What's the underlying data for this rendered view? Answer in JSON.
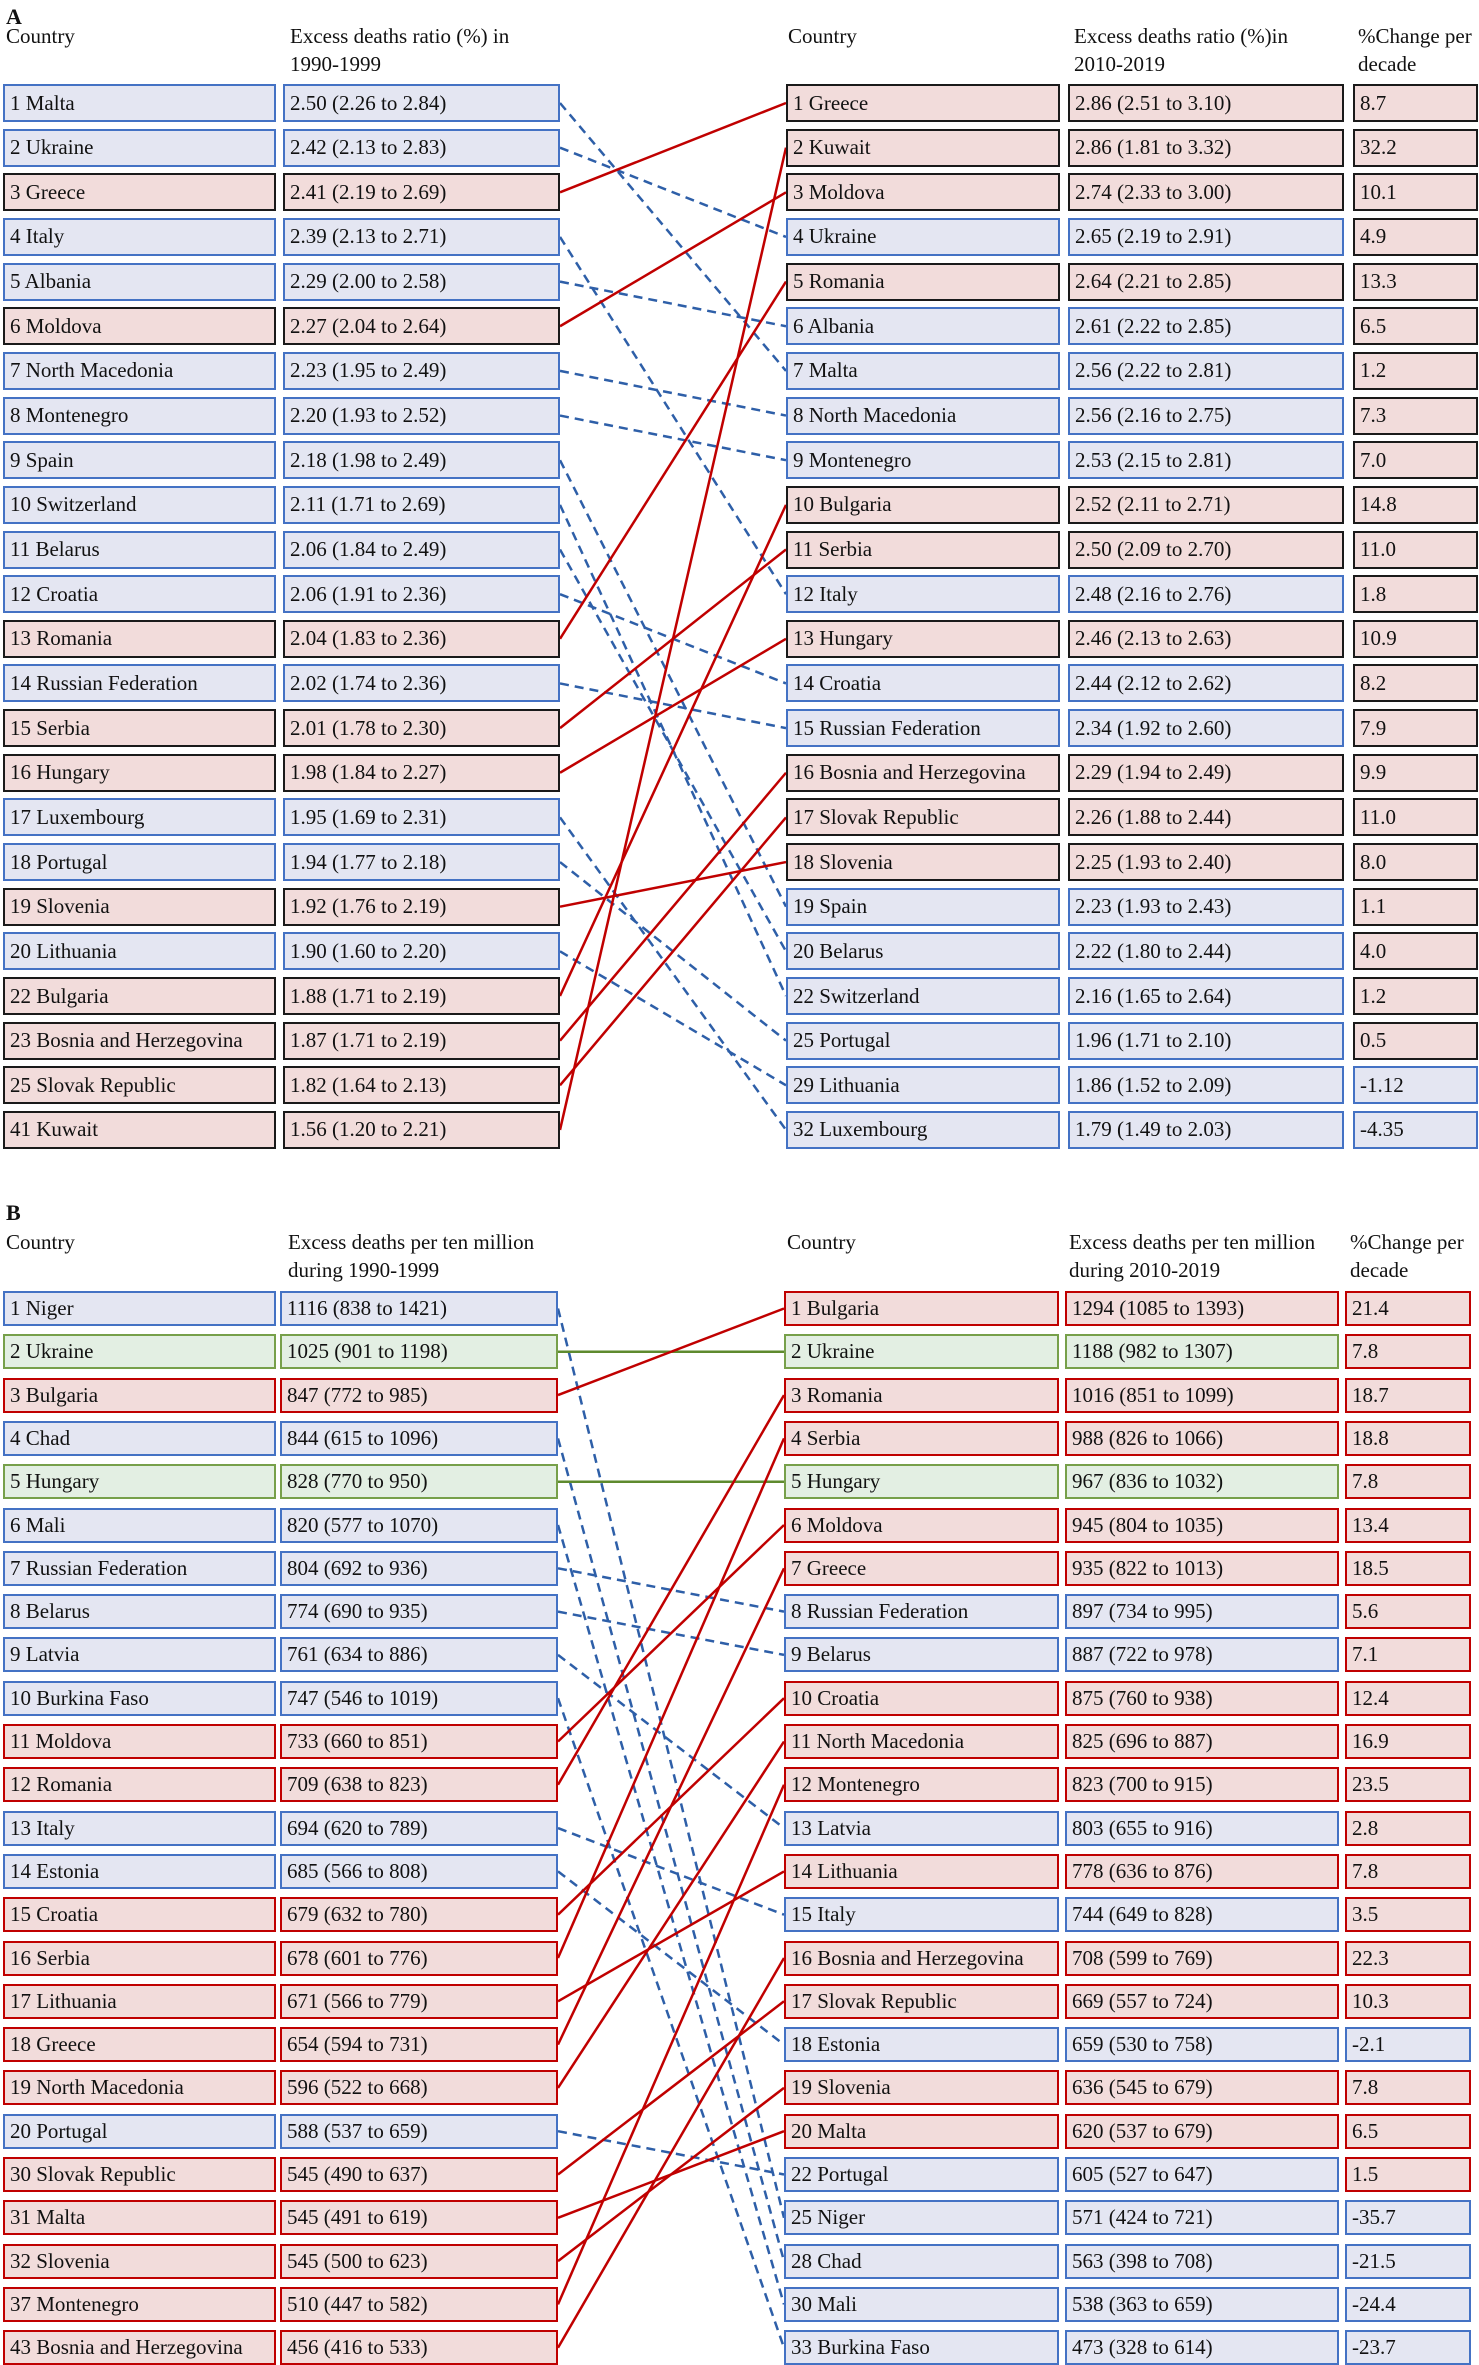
{
  "colors": {
    "increase": "#c00000",
    "decrease": "#2e5fa8",
    "stable": "#5e8a2e",
    "pink_fill": "#f2dcdb",
    "blue_fill": "#e4e6f2",
    "green_fill": "#e3efe3"
  },
  "panelA": {
    "label": "A",
    "headers": {
      "left_country": "Country",
      "left_value": "Excess deaths ratio (%) in 1990-1999",
      "right_country": "Country",
      "right_value": "Excess deaths ratio (%)in 2010-2019",
      "change": "%Change per decade"
    },
    "left": [
      {
        "rank": "1",
        "country": "Malta",
        "value": "2.50 (2.26 to 2.84)"
      },
      {
        "rank": "2",
        "country": "Ukraine",
        "value": "2.42 (2.13 to 2.83)"
      },
      {
        "rank": "3",
        "country": "Greece",
        "value": "2.41 (2.19 to 2.69)"
      },
      {
        "rank": "4",
        "country": "Italy",
        "value": "2.39 (2.13 to 2.71)"
      },
      {
        "rank": "5",
        "country": "Albania",
        "value": "2.29 (2.00 to 2.58)"
      },
      {
        "rank": "6",
        "country": "Moldova",
        "value": "2.27 (2.04 to 2.64)"
      },
      {
        "rank": "7",
        "country": "North Macedonia",
        "value": "2.23 (1.95 to 2.49)"
      },
      {
        "rank": "8",
        "country": "Montenegro",
        "value": "2.20 (1.93 to 2.52)"
      },
      {
        "rank": "9",
        "country": "Spain",
        "value": "2.18 (1.98 to 2.49)"
      },
      {
        "rank": "10",
        "country": "Switzerland",
        "value": "2.11 (1.71 to 2.69)"
      },
      {
        "rank": "11",
        "country": "Belarus",
        "value": "2.06 (1.84 to 2.49)"
      },
      {
        "rank": "12",
        "country": "Croatia",
        "value": "2.06 (1.91 to 2.36)"
      },
      {
        "rank": "13",
        "country": "Romania",
        "value": "2.04 (1.83 to 2.36)"
      },
      {
        "rank": "14",
        "country": "Russian Federation",
        "value": "2.02 (1.74 to 2.36)"
      },
      {
        "rank": "15",
        "country": "Serbia",
        "value": "2.01 (1.78 to 2.30)"
      },
      {
        "rank": "16",
        "country": "Hungary",
        "value": "1.98 (1.84 to 2.27)"
      },
      {
        "rank": "17",
        "country": "Luxembourg",
        "value": "1.95 (1.69 to 2.31)"
      },
      {
        "rank": "18",
        "country": "Portugal",
        "value": "1.94 (1.77 to 2.18)"
      },
      {
        "rank": "19",
        "country": "Slovenia",
        "value": "1.92 (1.76 to 2.19)"
      },
      {
        "rank": "20",
        "country": "Lithuania",
        "value": "1.90 (1.60 to 2.20)"
      },
      {
        "rank": "22",
        "country": "Bulgaria",
        "value": "1.88 (1.71 to 2.19)"
      },
      {
        "rank": "23",
        "country": "Bosnia and Herzegovina",
        "value": "1.87 (1.71 to 2.19)"
      },
      {
        "rank": "25",
        "country": "Slovak Republic",
        "value": "1.82 (1.64 to 2.13)"
      },
      {
        "rank": "41",
        "country": "Kuwait",
        "value": "1.56 (1.20 to 2.21)"
      }
    ],
    "right": [
      {
        "rank": "1",
        "country": "Greece",
        "value": "2.86 (2.51 to 3.10)",
        "change": "8.7",
        "trend": "increase"
      },
      {
        "rank": "2",
        "country": "Kuwait",
        "value": "2.86 (1.81 to 3.32)",
        "change": "32.2",
        "trend": "increase"
      },
      {
        "rank": "3",
        "country": "Moldova",
        "value": "2.74 (2.33 to 3.00)",
        "change": "10.1",
        "trend": "increase"
      },
      {
        "rank": "4",
        "country": "Ukraine",
        "value": "2.65 (2.19 to 2.91)",
        "change": "4.9",
        "trend": "decrease"
      },
      {
        "rank": "5",
        "country": "Romania",
        "value": "2.64 (2.21 to 2.85)",
        "change": "13.3",
        "trend": "increase"
      },
      {
        "rank": "6",
        "country": "Albania",
        "value": "2.61 (2.22 to 2.85)",
        "change": "6.5",
        "trend": "decrease"
      },
      {
        "rank": "7",
        "country": "Malta",
        "value": "2.56 (2.22 to 2.81)",
        "change": "1.2",
        "trend": "decrease"
      },
      {
        "rank": "8",
        "country": "North Macedonia",
        "value": "2.56 (2.16 to 2.75)",
        "change": "7.3",
        "trend": "decrease"
      },
      {
        "rank": "9",
        "country": "Montenegro",
        "value": "2.53 (2.15 to 2.81)",
        "change": "7.0",
        "trend": "decrease"
      },
      {
        "rank": "10",
        "country": "Bulgaria",
        "value": "2.52 (2.11 to 2.71)",
        "change": "14.8",
        "trend": "increase"
      },
      {
        "rank": "11",
        "country": "Serbia",
        "value": "2.50 (2.09 to 2.70)",
        "change": "11.0",
        "trend": "increase"
      },
      {
        "rank": "12",
        "country": "Italy",
        "value": "2.48 (2.16 to 2.76)",
        "change": "1.8",
        "trend": "decrease"
      },
      {
        "rank": "13",
        "country": "Hungary",
        "value": "2.46 (2.13 to 2.63)",
        "change": "10.9",
        "trend": "increase"
      },
      {
        "rank": "14",
        "country": "Croatia",
        "value": "2.44 (2.12 to 2.62)",
        "change": "8.2",
        "trend": "decrease"
      },
      {
        "rank": "15",
        "country": "Russian Federation",
        "value": "2.34 (1.92 to 2.60)",
        "change": "7.9",
        "trend": "decrease"
      },
      {
        "rank": "16",
        "country": "Bosnia and Herzegovina",
        "value": "2.29 (1.94 to 2.49)",
        "change": "9.9",
        "trend": "increase"
      },
      {
        "rank": "17",
        "country": "Slovak Republic",
        "value": "2.26 (1.88 to 2.44)",
        "change": "11.0",
        "trend": "increase"
      },
      {
        "rank": "18",
        "country": "Slovenia",
        "value": "2.25 (1.93 to 2.40)",
        "change": "8.0",
        "trend": "increase"
      },
      {
        "rank": "19",
        "country": "Spain",
        "value": "2.23 (1.93 to 2.43)",
        "change": "1.1",
        "trend": "decrease"
      },
      {
        "rank": "20",
        "country": "Belarus",
        "value": "2.22 (1.80 to 2.44)",
        "change": "4.0",
        "trend": "decrease"
      },
      {
        "rank": "22",
        "country": "Switzerland",
        "value": "2.16 (1.65 to 2.64)",
        "change": "1.2",
        "trend": "decrease"
      },
      {
        "rank": "25",
        "country": "Portugal",
        "value": "1.96 (1.71 to 2.10)",
        "change": "0.5",
        "trend": "decrease"
      },
      {
        "rank": "29",
        "country": "Lithuania",
        "value": "1.86 (1.52 to 2.09)",
        "change": "-1.12",
        "trend": "decrease"
      },
      {
        "rank": "32",
        "country": "Luxembourg",
        "value": "1.79 (1.49 to 2.03)",
        "change": "-4.35",
        "trend": "decrease"
      }
    ]
  },
  "panelB": {
    "label": "B",
    "headers": {
      "left_country": "Country",
      "left_value": "Excess deaths per ten million during 1990-1999",
      "right_country": "Country",
      "right_value": "Excess deaths per ten million during 2010-2019",
      "change": "%Change per decade"
    },
    "left": [
      {
        "rank": "1",
        "country": "Niger",
        "value": "1116 (838 to 1421)"
      },
      {
        "rank": "2",
        "country": "Ukraine",
        "value": "1025 (901 to 1198)"
      },
      {
        "rank": "3",
        "country": "Bulgaria",
        "value": "847 (772 to 985)"
      },
      {
        "rank": "4",
        "country": "Chad",
        "value": "844 (615 to 1096)"
      },
      {
        "rank": "5",
        "country": "Hungary",
        "value": "828 (770 to 950)"
      },
      {
        "rank": "6",
        "country": "Mali",
        "value": "820 (577 to 1070)"
      },
      {
        "rank": "7",
        "country": "Russian Federation",
        "value": "804 (692 to 936)"
      },
      {
        "rank": "8",
        "country": "Belarus",
        "value": "774 (690 to 935)"
      },
      {
        "rank": "9",
        "country": "Latvia",
        "value": "761 (634 to 886)"
      },
      {
        "rank": "10",
        "country": "Burkina Faso",
        "value": "747 (546 to 1019)"
      },
      {
        "rank": "11",
        "country": "Moldova",
        "value": "733 (660 to 851)"
      },
      {
        "rank": "12",
        "country": "Romania",
        "value": "709 (638 to 823)"
      },
      {
        "rank": "13",
        "country": "Italy",
        "value": "694 (620 to 789)"
      },
      {
        "rank": "14",
        "country": "Estonia",
        "value": "685 (566 to 808)"
      },
      {
        "rank": "15",
        "country": "Croatia",
        "value": "679 (632 to 780)"
      },
      {
        "rank": "16",
        "country": "Serbia",
        "value": "678 (601 to 776)"
      },
      {
        "rank": "17",
        "country": "Lithuania",
        "value": "671 (566 to 779)"
      },
      {
        "rank": "18",
        "country": "Greece",
        "value": "654 (594 to 731)"
      },
      {
        "rank": "19",
        "country": "North Macedonia",
        "value": "596 (522 to 668)"
      },
      {
        "rank": "20",
        "country": "Portugal",
        "value": "588 (537 to 659)"
      },
      {
        "rank": "30",
        "country": "Slovak Republic",
        "value": "545 (490 to 637)"
      },
      {
        "rank": "31",
        "country": "Malta",
        "value": "545 (491 to 619)"
      },
      {
        "rank": "32",
        "country": "Slovenia",
        "value": "545 (500 to 623)"
      },
      {
        "rank": "37",
        "country": "Montenegro",
        "value": "510 (447 to 582)"
      },
      {
        "rank": "43",
        "country": "Bosnia and Herzegovina",
        "value": "456 (416 to 533)"
      }
    ],
    "right": [
      {
        "rank": "1",
        "country": "Bulgaria",
        "value": "1294 (1085 to 1393)",
        "change": "21.4",
        "trend": "increase"
      },
      {
        "rank": "2",
        "country": "Ukraine",
        "value": "1188 (982 to 1307)",
        "change": "7.8",
        "trend": "stable"
      },
      {
        "rank": "3",
        "country": "Romania",
        "value": "1016 (851 to 1099)",
        "change": "18.7",
        "trend": "increase"
      },
      {
        "rank": "4",
        "country": "Serbia",
        "value": "988 (826 to 1066)",
        "change": "18.8",
        "trend": "increase"
      },
      {
        "rank": "5",
        "country": "Hungary",
        "value": "967 (836 to 1032)",
        "change": "7.8",
        "trend": "stable"
      },
      {
        "rank": "6",
        "country": "Moldova",
        "value": "945 (804 to 1035)",
        "change": "13.4",
        "trend": "increase"
      },
      {
        "rank": "7",
        "country": "Greece",
        "value": "935 (822 to 1013)",
        "change": "18.5",
        "trend": "increase"
      },
      {
        "rank": "8",
        "country": "Russian Federation",
        "value": "897 (734 to 995)",
        "change": "5.6",
        "trend": "decrease"
      },
      {
        "rank": "9",
        "country": "Belarus",
        "value": "887 (722 to 978)",
        "change": "7.1",
        "trend": "decrease"
      },
      {
        "rank": "10",
        "country": "Croatia",
        "value": "875 (760 to 938)",
        "change": "12.4",
        "trend": "increase"
      },
      {
        "rank": "11",
        "country": "North Macedonia",
        "value": "825 (696 to 887)",
        "change": "16.9",
        "trend": "increase"
      },
      {
        "rank": "12",
        "country": "Montenegro",
        "value": "823 (700 to 915)",
        "change": "23.5",
        "trend": "increase"
      },
      {
        "rank": "13",
        "country": "Latvia",
        "value": "803 (655 to 916)",
        "change": "2.8",
        "trend": "decrease"
      },
      {
        "rank": "14",
        "country": "Lithuania",
        "value": "778 (636 to 876)",
        "change": "7.8",
        "trend": "increase"
      },
      {
        "rank": "15",
        "country": "Italy",
        "value": "744 (649 to 828)",
        "change": "3.5",
        "trend": "decrease"
      },
      {
        "rank": "16",
        "country": "Bosnia and Herzegovina",
        "value": "708 (599 to 769)",
        "change": "22.3",
        "trend": "increase"
      },
      {
        "rank": "17",
        "country": "Slovak Republic",
        "value": "669 (557 to 724)",
        "change": "10.3",
        "trend": "increase"
      },
      {
        "rank": "18",
        "country": "Estonia",
        "value": "659 (530 to 758)",
        "change": "-2.1",
        "trend": "decrease"
      },
      {
        "rank": "19",
        "country": "Slovenia",
        "value": "636 (545 to 679)",
        "change": "7.8",
        "trend": "increase"
      },
      {
        "rank": "20",
        "country": "Malta",
        "value": "620 (537 to 679)",
        "change": "6.5",
        "trend": "increase"
      },
      {
        "rank": "22",
        "country": "Portugal",
        "value": "605 (527 to 647)",
        "change": "1.5",
        "trend": "decrease"
      },
      {
        "rank": "25",
        "country": "Niger",
        "value": "571 (424 to 721)",
        "change": "-35.7",
        "trend": "decrease"
      },
      {
        "rank": "28",
        "country": "Chad",
        "value": "563 (398 to 708)",
        "change": "-21.5",
        "trend": "decrease"
      },
      {
        "rank": "30",
        "country": "Mali",
        "value": "538 (363 to 659)",
        "change": "-24.4",
        "trend": "decrease"
      },
      {
        "rank": "33",
        "country": "Burkina Faso",
        "value": "473 (328 to 614)",
        "change": "-23.7",
        "trend": "decrease"
      }
    ]
  }
}
